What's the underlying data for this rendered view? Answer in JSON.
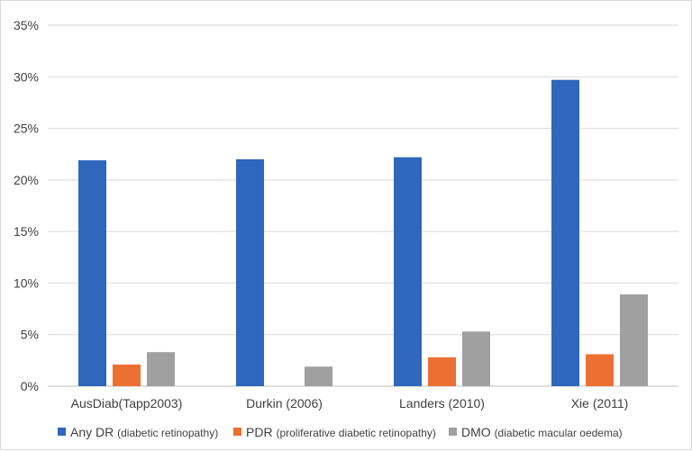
{
  "chart_data": {
    "type": "bar",
    "categories": [
      "AusDiab(Tapp2003)",
      "Durkin (2006)",
      "Landers (2010)",
      "Xie (2011)"
    ],
    "series": [
      {
        "name": "Any DR",
        "name_detail": "(diabetic retinopathy)",
        "color": "#2e67bc",
        "values": [
          21.9,
          22.0,
          22.2,
          29.7
        ]
      },
      {
        "name": "PDR",
        "name_detail": "(proliferative diabetic retinopathy)",
        "color": "#ed7033",
        "values": [
          2.1,
          null,
          2.8,
          3.1
        ]
      },
      {
        "name": "DMO",
        "name_detail": "(diabetic macular oedema)",
        "color": "#a0a0a0",
        "values": [
          3.3,
          1.9,
          5.3,
          8.9
        ]
      }
    ],
    "yticks": [
      "0%",
      "5%",
      "10%",
      "15%",
      "20%",
      "25%",
      "30%",
      "35%"
    ],
    "ylim": [
      0,
      35
    ],
    "ytick_step": 5,
    "grid": true,
    "legend_position": "bottom",
    "title": "",
    "xlabel": "",
    "ylabel": ""
  }
}
